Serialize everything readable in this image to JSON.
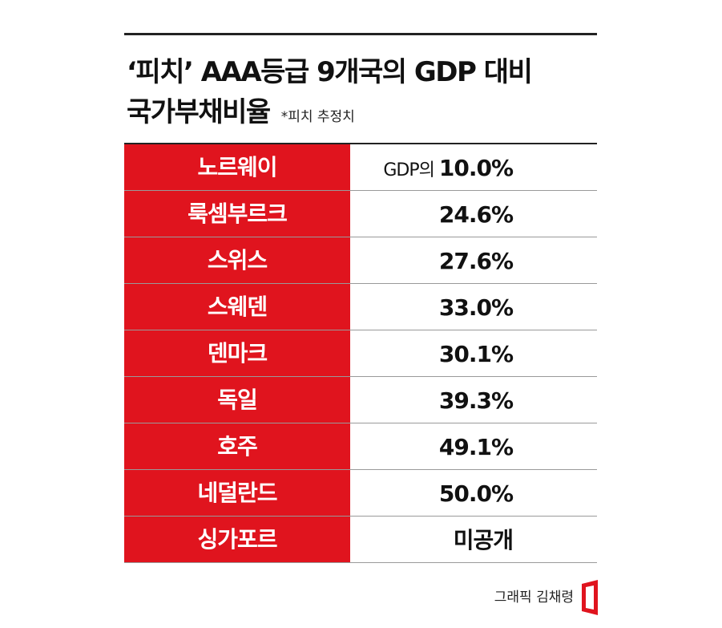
{
  "header": {
    "title": "‘피치’ AAA등급 9개국의 GDP 대비",
    "title_line2": "국가부채비율",
    "note": "*피치 추정치"
  },
  "table": {
    "rows": [
      {
        "country": "노르웨이",
        "prefix": "GDP의",
        "value": "10.0%"
      },
      {
        "country": "룩셈부르크",
        "value": "24.6%"
      },
      {
        "country": "스위스",
        "value": "27.6%"
      },
      {
        "country": "스웨덴",
        "value": "33.0%"
      },
      {
        "country": "덴마크",
        "value": "30.1%"
      },
      {
        "country": "독일",
        "value": "39.3%"
      },
      {
        "country": "호주",
        "value": "49.1%"
      },
      {
        "country": "네덜란드",
        "value": "50.0%"
      },
      {
        "country": "싱가포르",
        "value": "미공개"
      }
    ]
  },
  "footer": {
    "credit": "그래픽 김채령"
  }
}
